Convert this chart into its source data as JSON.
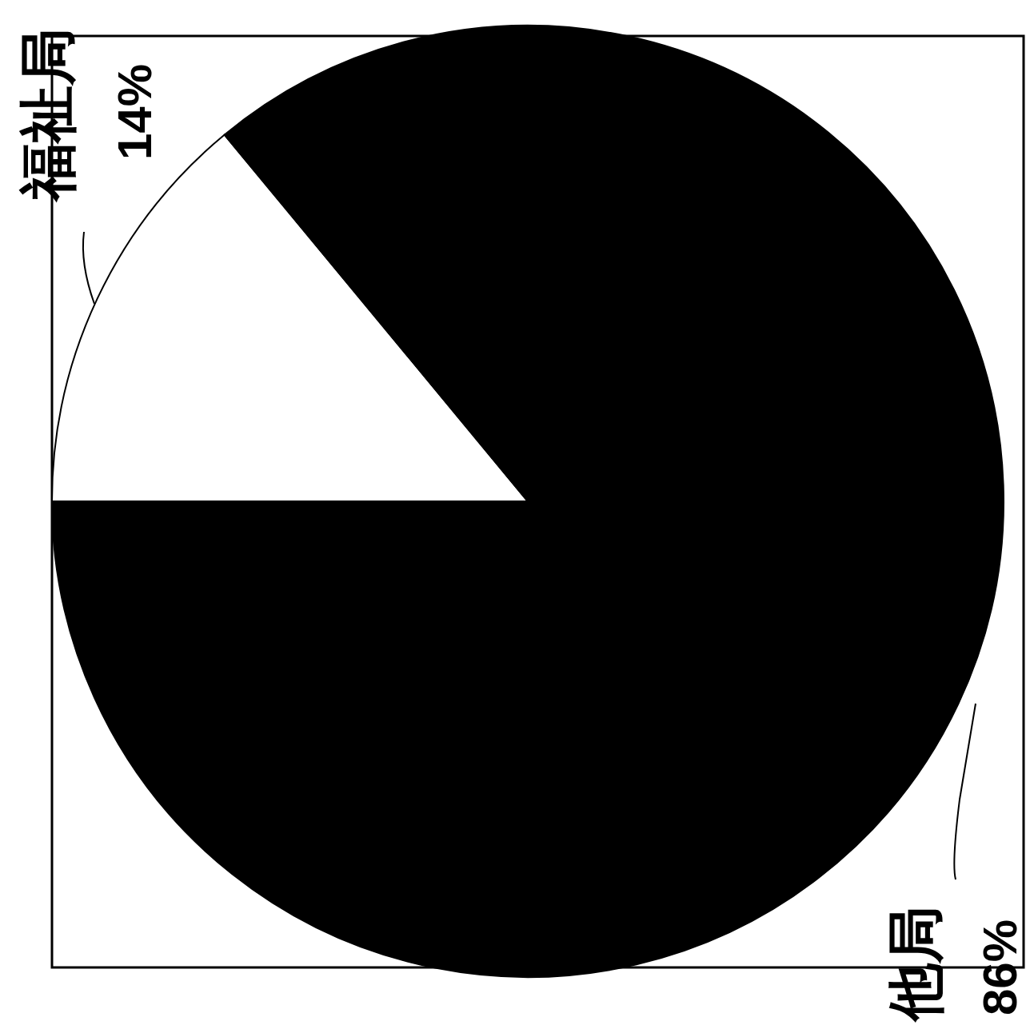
{
  "chart_data": {
    "type": "pie",
    "categories": [
      "福祉局",
      "他局"
    ],
    "values": [
      14,
      86
    ],
    "colors": [
      "#ffffff",
      "#000000"
    ],
    "value_labels": [
      "14%",
      "86%"
    ]
  }
}
